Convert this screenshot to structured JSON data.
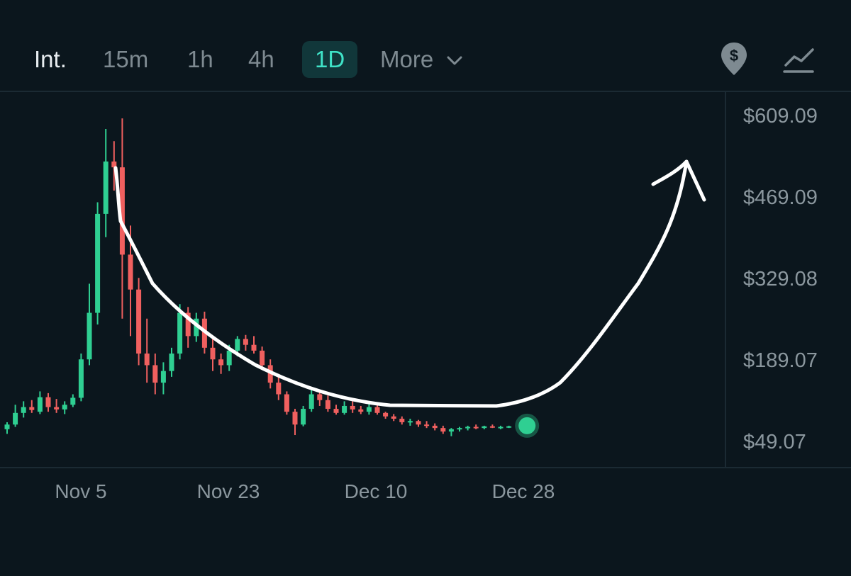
{
  "toolbar": {
    "intervals": [
      "Int.",
      "15m",
      "1h",
      "4h",
      "1D"
    ],
    "more_label": "More",
    "active_interval": "1D",
    "icons": [
      "dollar-pin-icon",
      "line-chart-icon"
    ]
  },
  "colors": {
    "background": "#0b161d",
    "up": "#2fcf92",
    "down": "#f0605f",
    "accent": "#3fe3c8",
    "annotation": "#ffffff"
  },
  "chart_data": {
    "type": "candlestick",
    "y_ticks": [
      "$609.09",
      "$469.09",
      "$329.08",
      "$189.07",
      "$49.07"
    ],
    "x_ticks": [
      "Nov 5",
      "Nov 23",
      "Dec 10",
      "Dec 28"
    ],
    "ylim": [
      49.07,
      609.09
    ],
    "annotation": "hand-drawn cup shape with upward arrow",
    "candles": [
      {
        "date": "Oct 26",
        "o": 70,
        "h": 82,
        "l": 62,
        "c": 78
      },
      {
        "date": "Oct 27",
        "o": 78,
        "h": 112,
        "l": 74,
        "c": 98
      },
      {
        "date": "Oct 28",
        "o": 98,
        "h": 118,
        "l": 90,
        "c": 108
      },
      {
        "date": "Oct 29",
        "o": 108,
        "h": 120,
        "l": 98,
        "c": 103
      },
      {
        "date": "Oct 30",
        "o": 100,
        "h": 135,
        "l": 96,
        "c": 125
      },
      {
        "date": "Oct 31",
        "o": 125,
        "h": 132,
        "l": 100,
        "c": 108
      },
      {
        "date": "Nov 1",
        "o": 108,
        "h": 122,
        "l": 98,
        "c": 104
      },
      {
        "date": "Nov 2",
        "o": 104,
        "h": 118,
        "l": 96,
        "c": 112
      },
      {
        "date": "Nov 3",
        "o": 112,
        "h": 130,
        "l": 108,
        "c": 124
      },
      {
        "date": "Nov 4",
        "o": 124,
        "h": 200,
        "l": 118,
        "c": 190
      },
      {
        "date": "Nov 5",
        "o": 190,
        "h": 320,
        "l": 180,
        "c": 270
      },
      {
        "date": "Nov 6",
        "o": 270,
        "h": 460,
        "l": 250,
        "c": 440
      },
      {
        "date": "Nov 7",
        "o": 440,
        "h": 586,
        "l": 400,
        "c": 530
      },
      {
        "date": "Nov 8",
        "o": 530,
        "h": 565,
        "l": 480,
        "c": 520
      },
      {
        "date": "Nov 9",
        "o": 520,
        "h": 604,
        "l": 260,
        "c": 370
      },
      {
        "date": "Nov 10",
        "o": 370,
        "h": 420,
        "l": 230,
        "c": 310
      },
      {
        "date": "Nov 11",
        "o": 310,
        "h": 330,
        "l": 180,
        "c": 200
      },
      {
        "date": "Nov 12",
        "o": 200,
        "h": 260,
        "l": 150,
        "c": 180
      },
      {
        "date": "Nov 13",
        "o": 180,
        "h": 200,
        "l": 130,
        "c": 150
      },
      {
        "date": "Nov 14",
        "o": 150,
        "h": 185,
        "l": 130,
        "c": 170
      },
      {
        "date": "Nov 15",
        "o": 170,
        "h": 210,
        "l": 160,
        "c": 200
      },
      {
        "date": "Nov 16",
        "o": 200,
        "h": 285,
        "l": 190,
        "c": 270
      },
      {
        "date": "Nov 17",
        "o": 270,
        "h": 280,
        "l": 210,
        "c": 230
      },
      {
        "date": "Nov 18",
        "o": 230,
        "h": 270,
        "l": 220,
        "c": 260
      },
      {
        "date": "Nov 19",
        "o": 260,
        "h": 272,
        "l": 200,
        "c": 210
      },
      {
        "date": "Nov 20",
        "o": 210,
        "h": 225,
        "l": 170,
        "c": 190
      },
      {
        "date": "Nov 21",
        "o": 190,
        "h": 200,
        "l": 165,
        "c": 180
      },
      {
        "date": "Nov 22",
        "o": 180,
        "h": 215,
        "l": 170,
        "c": 205
      },
      {
        "date": "Nov 23",
        "o": 205,
        "h": 230,
        "l": 195,
        "c": 225
      },
      {
        "date": "Nov 24",
        "o": 225,
        "h": 232,
        "l": 205,
        "c": 215
      },
      {
        "date": "Nov 25",
        "o": 215,
        "h": 230,
        "l": 200,
        "c": 205
      },
      {
        "date": "Nov 26",
        "o": 205,
        "h": 212,
        "l": 175,
        "c": 180
      },
      {
        "date": "Nov 27",
        "o": 180,
        "h": 190,
        "l": 140,
        "c": 150
      },
      {
        "date": "Nov 28",
        "o": 150,
        "h": 165,
        "l": 120,
        "c": 130
      },
      {
        "date": "Nov 29",
        "o": 130,
        "h": 135,
        "l": 95,
        "c": 100
      },
      {
        "date": "Nov 30",
        "o": 100,
        "h": 105,
        "l": 60,
        "c": 78
      },
      {
        "date": "Dec 1",
        "o": 78,
        "h": 110,
        "l": 75,
        "c": 105
      },
      {
        "date": "Dec 2",
        "o": 105,
        "h": 140,
        "l": 100,
        "c": 130
      },
      {
        "date": "Dec 3",
        "o": 130,
        "h": 135,
        "l": 110,
        "c": 120
      },
      {
        "date": "Dec 4",
        "o": 120,
        "h": 128,
        "l": 100,
        "c": 105
      },
      {
        "date": "Dec 5",
        "o": 105,
        "h": 112,
        "l": 95,
        "c": 98
      },
      {
        "date": "Dec 6",
        "o": 98,
        "h": 118,
        "l": 95,
        "c": 110
      },
      {
        "date": "Dec 7",
        "o": 110,
        "h": 118,
        "l": 98,
        "c": 104
      },
      {
        "date": "Dec 8",
        "o": 104,
        "h": 110,
        "l": 96,
        "c": 100
      },
      {
        "date": "Dec 9",
        "o": 100,
        "h": 115,
        "l": 95,
        "c": 108
      },
      {
        "date": "Dec 10",
        "o": 108,
        "h": 112,
        "l": 95,
        "c": 98
      },
      {
        "date": "Dec 11",
        "o": 98,
        "h": 100,
        "l": 88,
        "c": 92
      },
      {
        "date": "Dec 12",
        "o": 92,
        "h": 96,
        "l": 84,
        "c": 88
      },
      {
        "date": "Dec 13",
        "o": 88,
        "h": 92,
        "l": 78,
        "c": 82
      },
      {
        "date": "Dec 14",
        "o": 82,
        "h": 88,
        "l": 76,
        "c": 84
      },
      {
        "date": "Dec 15",
        "o": 84,
        "h": 86,
        "l": 74,
        "c": 78
      },
      {
        "date": "Dec 16",
        "o": 78,
        "h": 84,
        "l": 72,
        "c": 76
      },
      {
        "date": "Dec 17",
        "o": 76,
        "h": 80,
        "l": 68,
        "c": 72
      },
      {
        "date": "Dec 18",
        "o": 72,
        "h": 76,
        "l": 62,
        "c": 66
      },
      {
        "date": "Dec 19",
        "o": 66,
        "h": 72,
        "l": 58,
        "c": 70
      },
      {
        "date": "Dec 20",
        "o": 70,
        "h": 74,
        "l": 66,
        "c": 72
      },
      {
        "date": "Dec 21",
        "o": 72,
        "h": 76,
        "l": 68,
        "c": 74
      },
      {
        "date": "Dec 22",
        "o": 74,
        "h": 78,
        "l": 70,
        "c": 72
      },
      {
        "date": "Dec 23",
        "o": 72,
        "h": 76,
        "l": 70,
        "c": 75
      },
      {
        "date": "Dec 24",
        "o": 75,
        "h": 78,
        "l": 72,
        "c": 73
      },
      {
        "date": "Dec 25",
        "o": 73,
        "h": 76,
        "l": 70,
        "c": 74
      },
      {
        "date": "Dec 26",
        "o": 74,
        "h": 76,
        "l": 72,
        "c": 75
      }
    ],
    "last_price_marker": {
      "date": "Dec 27",
      "value": 76
    }
  }
}
